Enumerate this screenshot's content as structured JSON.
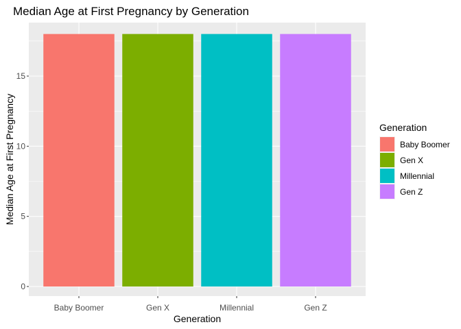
{
  "chart_data": {
    "type": "bar",
    "title": "Median Age at First Pregnancy by Generation",
    "xlabel": "Generation",
    "ylabel": "Median Age at First Pregnancy",
    "categories": [
      "Baby Boomer",
      "Gen X",
      "Millennial",
      "Gen Z"
    ],
    "values": [
      18,
      18,
      18,
      18
    ],
    "colors": [
      "#F8766D",
      "#7CAE00",
      "#00BFC4",
      "#C77CFF"
    ],
    "ylim": [
      0,
      18.9
    ],
    "yticks": [
      0,
      5,
      10,
      15
    ],
    "grid": true,
    "legend": {
      "title": "Generation",
      "position": "right",
      "items": [
        "Baby Boomer",
        "Gen X",
        "Millennial",
        "Gen Z"
      ]
    }
  }
}
